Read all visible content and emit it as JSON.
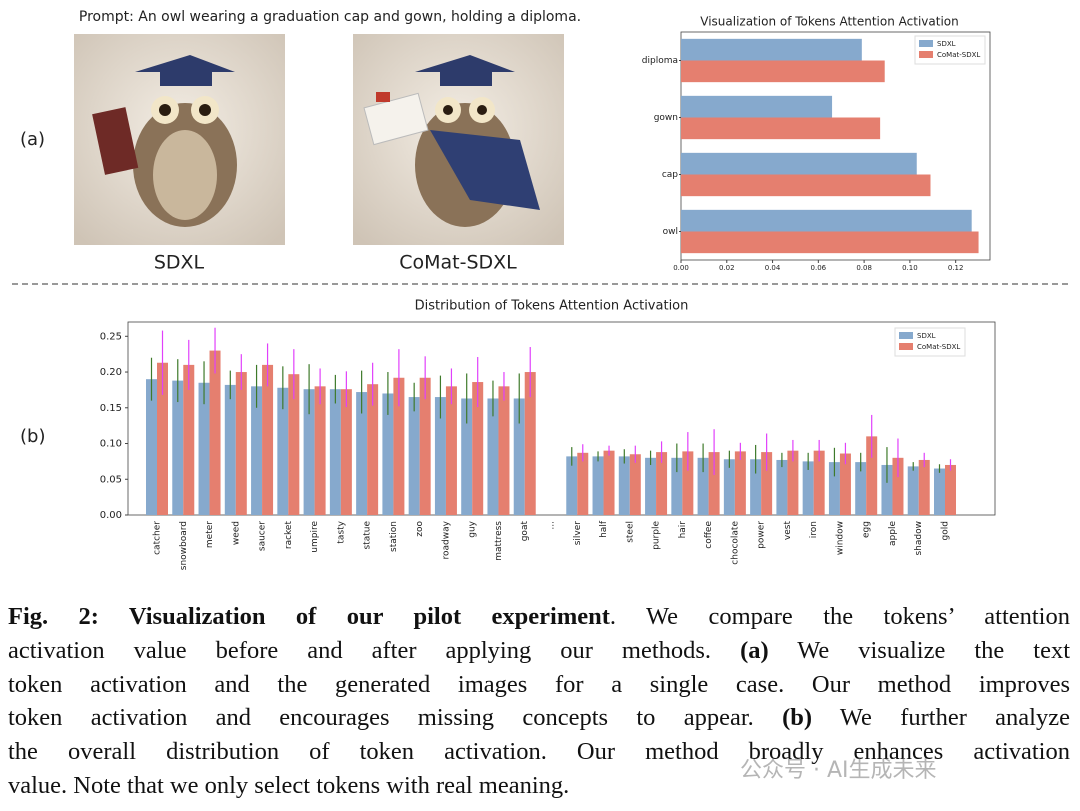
{
  "prompt": "Prompt: An owl wearing a graduation cap and gown, holding a diploma.",
  "panel_labels": [
    "(a)",
    "(b)"
  ],
  "images": [
    {
      "caption": "SDXL"
    },
    {
      "caption": "CoMat-SDXL"
    }
  ],
  "chart_data": [
    {
      "type": "hbar",
      "title": "Visualization of Tokens Attention Activation",
      "categories": [
        "diploma",
        "gown",
        "cap",
        "owl"
      ],
      "series": [
        {
          "name": "SDXL",
          "color": "#86a9cd",
          "values": [
            0.079,
            0.066,
            0.103,
            0.127
          ]
        },
        {
          "name": "CoMat-SDXL",
          "color": "#e57f6f",
          "values": [
            0.089,
            0.087,
            0.109,
            0.13
          ]
        }
      ],
      "xlim": [
        0,
        0.135
      ],
      "xticks": [
        {
          "value": 0,
          "label": "0.00"
        },
        {
          "value": 0.02,
          "label": "0.02"
        },
        {
          "value": 0.04,
          "label": "0.04"
        },
        {
          "value": 0.06,
          "label": "0.06"
        },
        {
          "value": 0.08,
          "label": "0.08"
        },
        {
          "value": 0.1,
          "label": "0.10"
        },
        {
          "value": 0.12,
          "label": "0.12"
        }
      ],
      "legend": "upper right"
    },
    {
      "type": "bar",
      "title": "Distribution of Tokens Attention Activation",
      "categories": [
        "catcher",
        "snowboard",
        "meter",
        "weed",
        "saucer",
        "racket",
        "umpire",
        "tasty",
        "statue",
        "station",
        "zoo",
        "roadway",
        "guy",
        "mattress",
        "goat",
        "...",
        "silver",
        "half",
        "steel",
        "purple",
        "hair",
        "coffee",
        "chocolate",
        "power",
        "vest",
        "iron",
        "window",
        "egg",
        "apple",
        "shadow",
        "gold"
      ],
      "series": [
        {
          "name": "SDXL",
          "color": "#86a9cd",
          "error_color": "#3e7a2a",
          "values": [
            0.19,
            0.188,
            0.185,
            0.182,
            0.18,
            0.178,
            0.176,
            0.176,
            0.172,
            0.17,
            0.165,
            0.165,
            0.163,
            0.163,
            0.163,
            null,
            0.082,
            0.082,
            0.082,
            0.08,
            0.08,
            0.08,
            0.078,
            0.078,
            0.077,
            0.075,
            0.074,
            0.074,
            0.07,
            0.068,
            0.065
          ],
          "errors": [
            0.03,
            0.03,
            0.03,
            0.02,
            0.03,
            0.03,
            0.035,
            0.02,
            0.03,
            0.03,
            0.02,
            0.03,
            0.035,
            0.025,
            0.035,
            null,
            0.013,
            0.007,
            0.01,
            0.01,
            0.02,
            0.02,
            0.012,
            0.02,
            0.01,
            0.012,
            0.02,
            0.013,
            0.025,
            0.006,
            0.006
          ]
        },
        {
          "name": "CoMat-SDXL",
          "color": "#e57f6f",
          "error_color": "#e040fb",
          "values": [
            0.213,
            0.21,
            0.23,
            0.2,
            0.21,
            0.197,
            0.18,
            0.176,
            0.183,
            0.192,
            0.192,
            0.18,
            0.186,
            0.18,
            0.2,
            null,
            0.087,
            0.09,
            0.085,
            0.088,
            0.089,
            0.088,
            0.089,
            0.088,
            0.09,
            0.09,
            0.086,
            0.11,
            0.08,
            0.077,
            0.07
          ],
          "errors": [
            0.045,
            0.035,
            0.032,
            0.025,
            0.03,
            0.035,
            0.025,
            0.025,
            0.03,
            0.04,
            0.03,
            0.025,
            0.035,
            0.02,
            0.035,
            null,
            0.012,
            0.007,
            0.012,
            0.015,
            0.027,
            0.032,
            0.012,
            0.026,
            0.015,
            0.015,
            0.015,
            0.03,
            0.027,
            0.01,
            0.008
          ]
        }
      ],
      "ylim": [
        0,
        0.27
      ],
      "yticks": [
        {
          "value": 0,
          "label": "0.00"
        },
        {
          "value": 0.05,
          "label": "0.05"
        },
        {
          "value": 0.1,
          "label": "0.10"
        },
        {
          "value": 0.15,
          "label": "0.15"
        },
        {
          "value": 0.2,
          "label": "0.20"
        },
        {
          "value": 0.25,
          "label": "0.25"
        }
      ],
      "legend": "upper right"
    }
  ],
  "caption": {
    "lines": [
      [
        {
          "text": "Fig. 2: Visualization of our pilot experiment",
          "bold": true
        },
        {
          "text": ". We compare the tokens’ attention",
          "bold": false
        }
      ],
      [
        {
          "text": "activation value before and after applying our methods. ",
          "bold": false
        },
        {
          "text": "(a)",
          "bold": true
        },
        {
          "text": " We visualize the text",
          "bold": false
        }
      ],
      [
        {
          "text": "token activation and the generated images for a single case. Our method improves",
          "bold": false
        }
      ],
      [
        {
          "text": "token activation and encourages missing concepts to appear. ",
          "bold": false
        },
        {
          "text": "(b)",
          "bold": true
        },
        {
          "text": " We further analyze",
          "bold": false
        }
      ],
      [
        {
          "text": "the overall distribution of token activation. Our method broadly enhances activation",
          "bold": false
        }
      ],
      [
        {
          "text": "value. Note that we only select tokens with real meaning.",
          "bold": false
        }
      ]
    ]
  },
  "watermark": "公众号 · AI生成未来"
}
